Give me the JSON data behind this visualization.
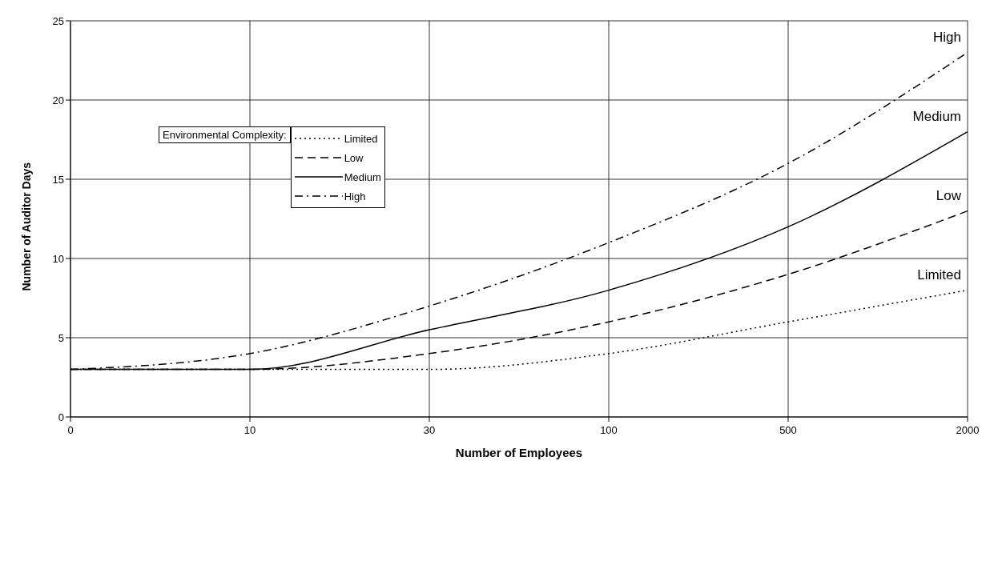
{
  "chart_data": {
    "type": "line",
    "xlabel": "Number of Employees",
    "ylabel": "Number of Auditor Days",
    "legend_title": "Environmental Complexity:",
    "categories": [
      "0",
      "10",
      "30",
      "100",
      "500",
      "2000"
    ],
    "series": [
      {
        "name": "Limited",
        "color": "#000000",
        "line_style": "dotted",
        "values": [
          3,
          3,
          3,
          4,
          6,
          8
        ]
      },
      {
        "name": "Low",
        "color": "#000000",
        "line_style": "dashed",
        "values": [
          3,
          3,
          4,
          6,
          9,
          13
        ]
      },
      {
        "name": "Medium",
        "color": "#000000",
        "line_style": "solid",
        "values": [
          3,
          3,
          5.5,
          8,
          12,
          18
        ]
      },
      {
        "name": "High",
        "color": "#000000",
        "line_style": "dashdot",
        "values": [
          3,
          4,
          7,
          11,
          16,
          23
        ]
      }
    ],
    "ylim": [
      0,
      25
    ],
    "yticks": [
      0,
      5,
      10,
      15,
      20,
      25
    ],
    "grid": true,
    "legend": "top left",
    "marker": "none"
  }
}
